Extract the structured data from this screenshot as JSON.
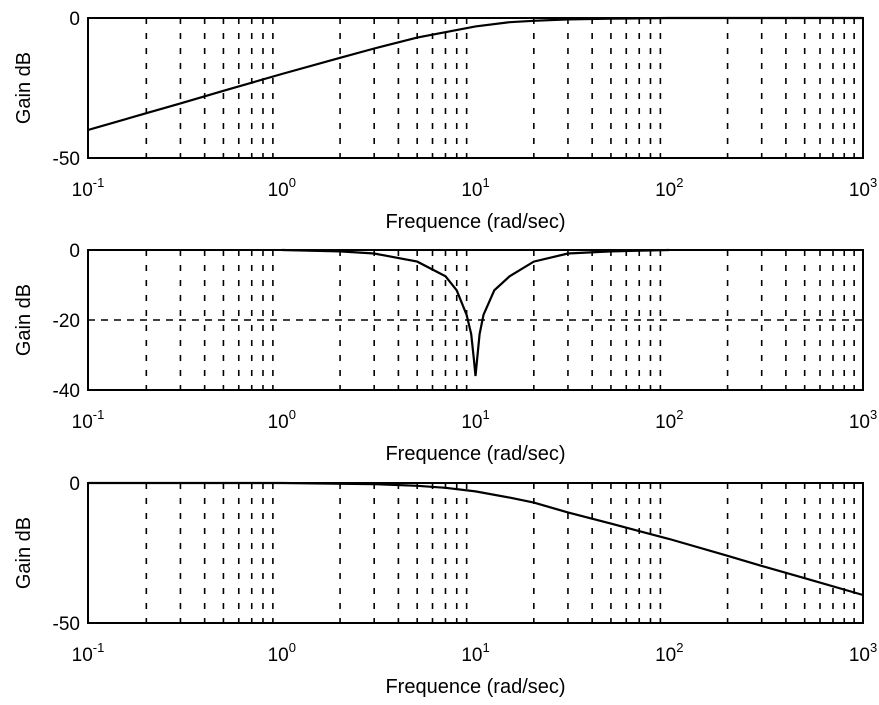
{
  "chart_data": [
    {
      "type": "line",
      "xscale": "log",
      "xlim": [
        0.1,
        1000
      ],
      "ylim": [
        -50,
        0
      ],
      "ylabel": "Gain dB",
      "xlabel": "Frequence (rad/sec)",
      "y_ticks": [
        "0",
        "-50"
      ],
      "x_ticks": [
        {
          "base": "10",
          "exp": "-1"
        },
        {
          "base": "10",
          "exp": "0"
        },
        {
          "base": "10",
          "exp": "1"
        },
        {
          "base": "10",
          "exp": "2"
        },
        {
          "base": "10",
          "exp": "3"
        }
      ],
      "grid": true,
      "series": [
        {
          "x": [
            0.1,
            0.2,
            0.3,
            0.5,
            1,
            2,
            3,
            5,
            10,
            15,
            20,
            30,
            50,
            100,
            1000
          ],
          "y": [
            -40,
            -34,
            -30.5,
            -26,
            -20,
            -14.2,
            -10.9,
            -7.0,
            -3.0,
            -1.5,
            -1.0,
            -0.5,
            -0.2,
            0,
            0
          ]
        }
      ]
    },
    {
      "type": "line",
      "xscale": "log",
      "xlim": [
        0.1,
        1000
      ],
      "ylim": [
        -40,
        0
      ],
      "ylabel": "Gain dB",
      "xlabel": "Frequence (rad/sec)",
      "y_ticks": [
        "0",
        "-20",
        "-40"
      ],
      "x_ticks": [
        {
          "base": "10",
          "exp": "-1"
        },
        {
          "base": "10",
          "exp": "0"
        },
        {
          "base": "10",
          "exp": "1"
        },
        {
          "base": "10",
          "exp": "2"
        },
        {
          "base": "10",
          "exp": "3"
        }
      ],
      "grid": true,
      "reference_line": -20,
      "series": [
        {
          "x": [
            1,
            2,
            3,
            5,
            7,
            8,
            9,
            9.5,
            9.8,
            10,
            10.2,
            10.5,
            11,
            12.5,
            15,
            20,
            30,
            50,
            100
          ],
          "y": [
            0,
            -0.4,
            -1.0,
            -3.3,
            -7.5,
            -11.5,
            -18.5,
            -24,
            -31,
            -36,
            -31,
            -24,
            -18.5,
            -11.5,
            -7.5,
            -3.3,
            -1.0,
            -0.4,
            0
          ]
        }
      ]
    },
    {
      "type": "line",
      "xscale": "log",
      "xlim": [
        0.1,
        1000
      ],
      "ylim": [
        -50,
        0
      ],
      "ylabel": "Gain dB",
      "xlabel": "Frequence (rad/sec)",
      "y_ticks": [
        "0",
        "-50"
      ],
      "x_ticks": [
        {
          "base": "10",
          "exp": "-1"
        },
        {
          "base": "10",
          "exp": "0"
        },
        {
          "base": "10",
          "exp": "1"
        },
        {
          "base": "10",
          "exp": "2"
        },
        {
          "base": "10",
          "exp": "3"
        }
      ],
      "grid": true,
      "series": [
        {
          "x": [
            0.1,
            1,
            3,
            5,
            7,
            10,
            15,
            20,
            30,
            50,
            100,
            200,
            300,
            500,
            1000
          ],
          "y": [
            0,
            0,
            -0.4,
            -1.0,
            -1.7,
            -3.0,
            -5.2,
            -7.0,
            -10.5,
            -14.5,
            -20.0,
            -26.0,
            -29.6,
            -34.0,
            -40.0
          ]
        }
      ]
    }
  ]
}
